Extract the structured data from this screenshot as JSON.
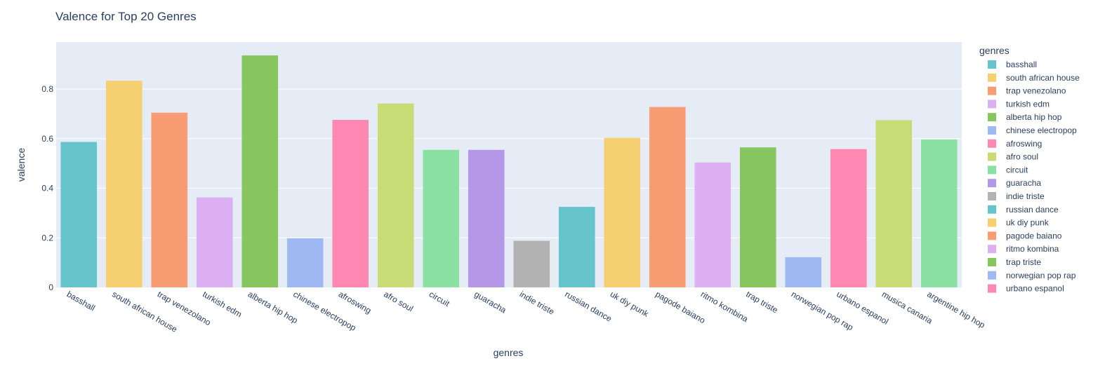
{
  "chart_data": {
    "type": "bar",
    "title": "Valence for Top 20 Genres",
    "xlabel": "genres",
    "ylabel": "valence",
    "ylim": [
      0,
      0.99
    ],
    "yticks": [
      0,
      0.2,
      0.4,
      0.6,
      0.8
    ],
    "ytick_labels": [
      "0",
      "0.2",
      "0.4",
      "0.6",
      "0.8"
    ],
    "grid": true,
    "legend_title": "genres",
    "legend_position": "right",
    "categories": [
      "basshall",
      "south african house",
      "trap venezolano",
      "turkish edm",
      "alberta hip hop",
      "chinese electropop",
      "afroswing",
      "afro soul",
      "circuit",
      "guaracha",
      "indie triste",
      "russian dance",
      "uk diy punk",
      "pagode baiano",
      "ritmo kombina",
      "trap triste",
      "norwegian pop rap",
      "urbano espanol",
      "musica canaria",
      "argentine hip hop"
    ],
    "values": [
      0.587,
      0.834,
      0.705,
      0.363,
      0.936,
      0.198,
      0.676,
      0.742,
      0.555,
      0.555,
      0.188,
      0.325,
      0.603,
      0.728,
      0.504,
      0.565,
      0.122,
      0.558,
      0.675,
      0.597
    ],
    "colors": [
      "#66C5CC",
      "#F6CF71",
      "#F89C74",
      "#DCB0F2",
      "#87C55F",
      "#9EB9F3",
      "#FE88B1",
      "#C9DB74",
      "#8BE0A4",
      "#B497E7",
      "#B3B3B3",
      "#66C5CC",
      "#F6CF71",
      "#F89C74",
      "#DCB0F2",
      "#87C55F",
      "#9EB9F3",
      "#FE88B1",
      "#C9DB74",
      "#8BE0A4"
    ],
    "legend_visible_count": 18
  }
}
